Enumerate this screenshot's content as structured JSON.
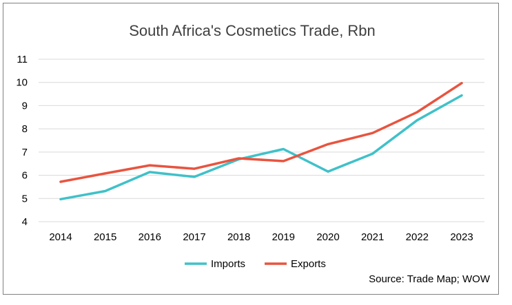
{
  "chart_data": {
    "type": "line",
    "title": "South Africa's Cosmetics Trade, Rbn",
    "xlabel": "",
    "ylabel": "",
    "categories": [
      "2014",
      "2015",
      "2016",
      "2017",
      "2018",
      "2019",
      "2020",
      "2021",
      "2022",
      "2023"
    ],
    "ylim": [
      4,
      11
    ],
    "yticks": [
      4,
      5,
      6,
      7,
      8,
      9,
      10,
      11
    ],
    "grid": true,
    "legend_position": "bottom",
    "series": [
      {
        "name": "Imports",
        "color": "#3fc1c9",
        "values": [
          4.97,
          5.32,
          6.14,
          5.93,
          6.69,
          7.13,
          6.16,
          6.93,
          8.37,
          9.44
        ]
      },
      {
        "name": "Exports",
        "color": "#e8543f",
        "values": [
          5.72,
          6.08,
          6.43,
          6.28,
          6.73,
          6.61,
          7.34,
          7.82,
          8.72,
          9.97
        ]
      }
    ]
  },
  "source": "Source: Trade Map; WOW"
}
